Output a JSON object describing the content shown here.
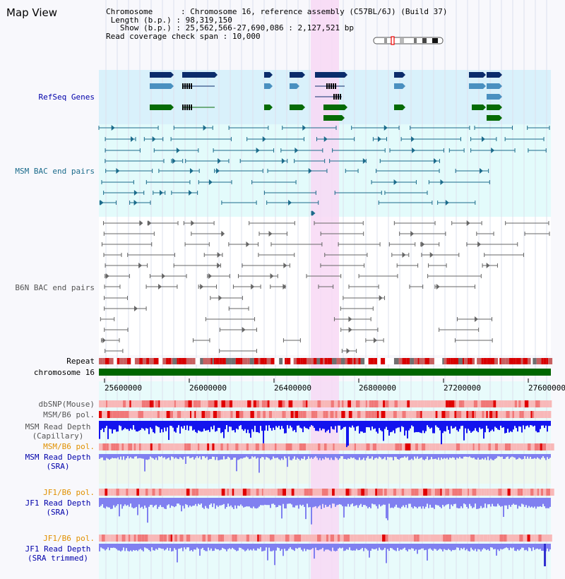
{
  "window": {
    "title": "Map View"
  },
  "info": {
    "chromosome_key": "Chromosome",
    "chromosome_val": "Chromosome 16, reference assembly (C57BL/6J) (Build 37)",
    "length_key": "Length (b.p.)",
    "length_val": "98,319,150",
    "show_key": "Show (b.p.)",
    "show_val": "25,562,566-27,690,086 : 2,127,521 bp",
    "coverage_key": "Read coverage check span",
    "coverage_val": "10,000"
  },
  "tracks": {
    "refseq": "RefSeq Genes",
    "msm_bac": "MSM BAC end pairs",
    "b6n_bac": "B6N BAC end pairs",
    "repeat": "Repeat",
    "chromosome": "chromosome 16",
    "dbsnp": "dbSNP(Mouse)",
    "msm_b6_pol_1": "MSM/B6 pol.",
    "msm_read_depth_cap_1": "MSM Read Depth",
    "msm_read_depth_cap_2": "(Capillary)",
    "msm_b6_pol_2": "MSM/B6 pol.",
    "msm_read_depth_sra_1": "MSM Read Depth",
    "msm_read_depth_sra_2": "(SRA)",
    "jf1_b6_pol_1": "JF1/B6 pol.",
    "jf1_read_depth_sra_1": "JF1 Read Depth",
    "jf1_read_depth_sra_2": "(SRA)",
    "jf1_b6_pol_2": "JF1/B6 pol.",
    "jf1_read_depth_trim_1": "JF1 Read Depth",
    "jf1_read_depth_trim_2": "(SRA trimmed)"
  },
  "axis": {
    "ticks": [
      "25600000",
      "26000000",
      "26400000",
      "26800000",
      "27200000",
      "27600000"
    ]
  },
  "colors": {
    "refseq_bg": "#d9f1fb",
    "msm_bg": "#e3fbfb",
    "gene_dark": "#0b2c6b",
    "gene_mid": "#4a90c0",
    "gene_green": "#066b06",
    "msm_pair": "#1b6b8b",
    "b6n_pair": "#666666",
    "highlight": "#f8d8f4",
    "chromosome_bar": "#006600",
    "label_blue": "#0000aa",
    "label_orange": "#e09000",
    "depth_blue": "#1414ee",
    "depth_lilac": "#8080f0"
  }
}
